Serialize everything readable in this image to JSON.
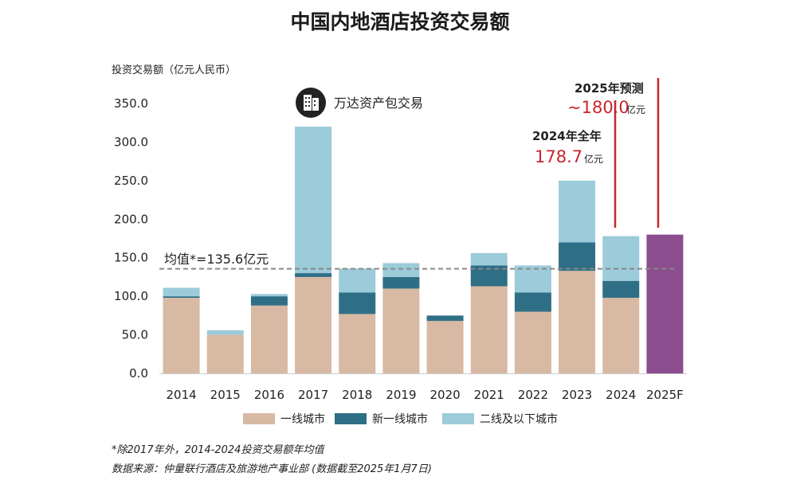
{
  "title": "中国内地酒店投资交易额",
  "ylabel": "投资交易额（亿元人民币）",
  "colors": {
    "tier1": "#d8b9a3",
    "new_tier1": "#2f6f86",
    "tier2": "#9ccbda",
    "forecast": "#8b4d8e",
    "accent_red": "#c8262e",
    "avg_line": "#888888",
    "axis": "#cccccc"
  },
  "chart_data": {
    "type": "bar",
    "stacked": true,
    "categories": [
      "2014",
      "2015",
      "2016",
      "2017",
      "2018",
      "2019",
      "2020",
      "2021",
      "2022",
      "2023",
      "2024",
      "2025F"
    ],
    "series": [
      {
        "name": "一线城市",
        "values": [
          98,
          50,
          88,
          125,
          77,
          110,
          68,
          113,
          80,
          133,
          98,
          0
        ]
      },
      {
        "name": "新一线城市",
        "values": [
          2,
          0,
          12,
          5,
          28,
          15,
          7,
          27,
          25,
          37,
          22,
          0
        ]
      },
      {
        "name": "二线及以下城市",
        "values": [
          11,
          6,
          3,
          190,
          31,
          18,
          0,
          16,
          35,
          80,
          58,
          0
        ]
      }
    ],
    "forecast": {
      "category": "2025F",
      "value": 180
    },
    "yticks": [
      "0.0",
      "50.0",
      "100.0",
      "150.0",
      "200.0",
      "250.0",
      "300.0",
      "350.0"
    ],
    "ylim": [
      0,
      350
    ],
    "average": {
      "value": 135.6,
      "label": "均值*=135.6亿元"
    },
    "annotations": {
      "wanda": "万达资产包交易",
      "full_year_2024": {
        "label": "2024年全年",
        "value": "178.7",
        "unit": "亿元"
      },
      "forecast_2025": {
        "label": "2025年预测",
        "value": "~180.0",
        "unit": "亿元"
      }
    },
    "legend": [
      "一线城市",
      "新一线城市",
      "二线及以下城市"
    ],
    "legend_position": "bottom"
  },
  "footnotes": {
    "note": "*除2017年外，2014-2024投资交易额年均值",
    "source": "数据来源：仲量联行酒店及旅游地产事业部 (数据截至2025年1月7日)"
  },
  "icons": {
    "wanda": "building-icon"
  }
}
